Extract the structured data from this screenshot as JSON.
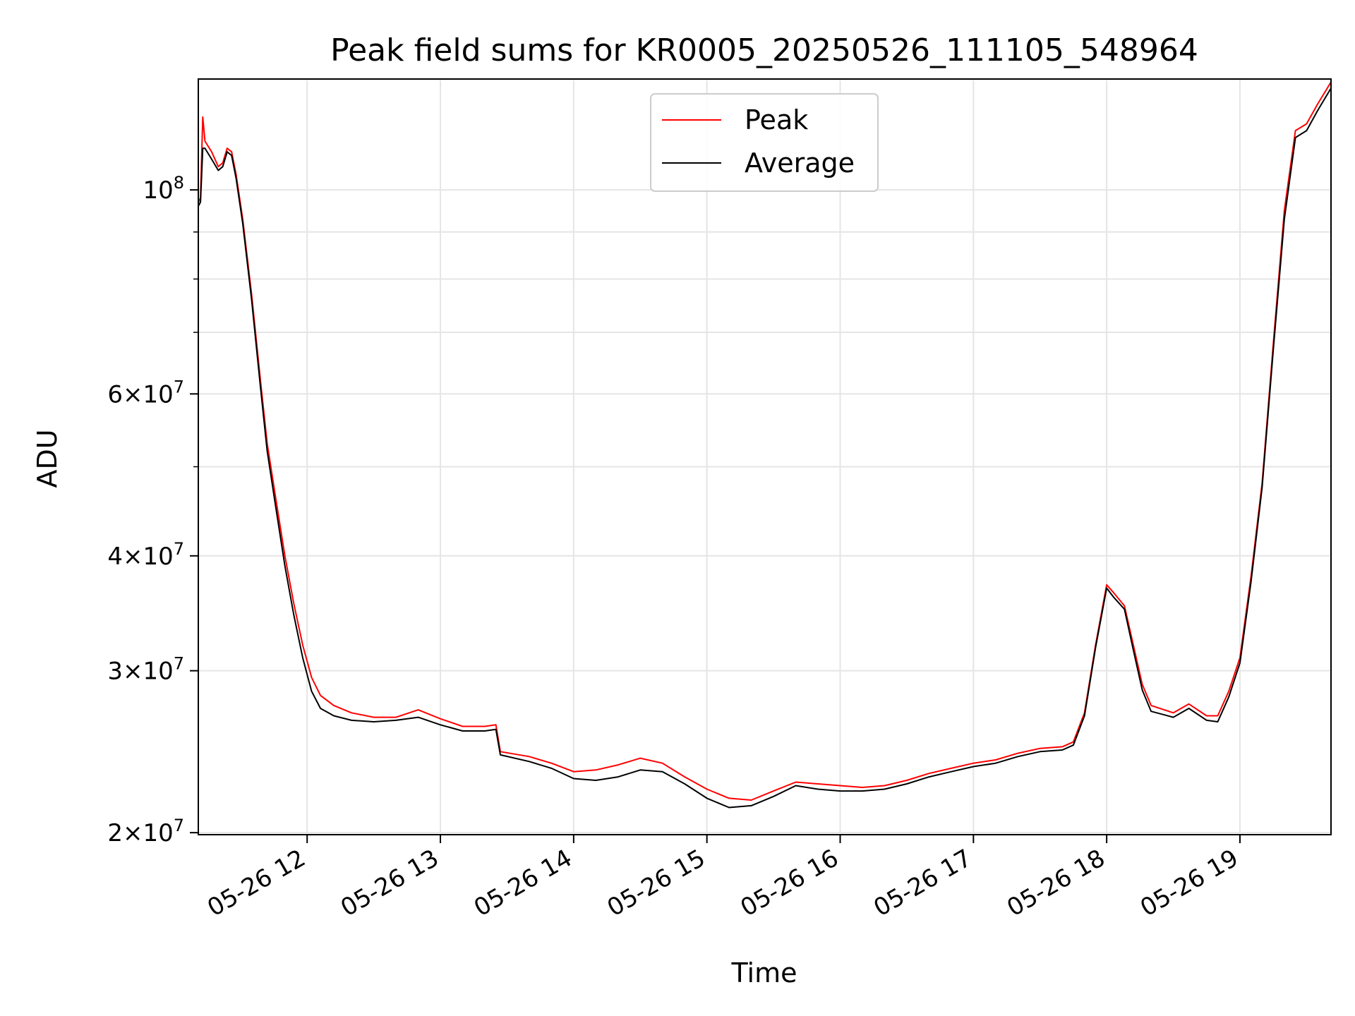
{
  "chart_data": {
    "type": "line",
    "title": "Peak field sums for KR0005_20250526_111105_548964",
    "xlabel": "Time",
    "ylabel": "ADU",
    "y_scale": "log",
    "ylim": [
      19900000,
      132000000
    ],
    "xlim": [
      "2025-05-26 11:11",
      "2025-05-26 19:41"
    ],
    "x_ticks": [
      "05-26 12",
      "05-26 13",
      "05-26 14",
      "05-26 15",
      "05-26 16",
      "05-26 17",
      "05-26 18",
      "05-26 19"
    ],
    "y_ticks": [
      {
        "value": 20000000,
        "mant": "2",
        "exp": "7"
      },
      {
        "value": 30000000,
        "mant": "3",
        "exp": "7"
      },
      {
        "value": 40000000,
        "mant": "4",
        "exp": "7"
      },
      {
        "value": 60000000,
        "mant": "6",
        "exp": "7"
      },
      {
        "value": 100000000,
        "mant": "",
        "exp": "8"
      }
    ],
    "grid": true,
    "legend_position": "top-center",
    "series": [
      {
        "name": "Peak",
        "color": "#ff0000",
        "points": [
          [
            "2025-05-26 11:11",
            97000000
          ],
          [
            "2025-05-26 11:12",
            98000000
          ],
          [
            "2025-05-26 11:13",
            120000000
          ],
          [
            "2025-05-26 11:14",
            113000000
          ],
          [
            "2025-05-26 11:17",
            110000000
          ],
          [
            "2025-05-26 11:20",
            106000000
          ],
          [
            "2025-05-26 11:22",
            107000000
          ],
          [
            "2025-05-26 11:24",
            111000000
          ],
          [
            "2025-05-26 11:26",
            110000000
          ],
          [
            "2025-05-26 11:28",
            104000000
          ],
          [
            "2025-05-26 11:31",
            93000000
          ],
          [
            "2025-05-26 11:35",
            77000000
          ],
          [
            "2025-05-26 11:39",
            62000000
          ],
          [
            "2025-05-26 11:42",
            53000000
          ],
          [
            "2025-05-26 11:46",
            46000000
          ],
          [
            "2025-05-26 11:50",
            40000000
          ],
          [
            "2025-05-26 11:54",
            35500000
          ],
          [
            "2025-05-26 11:58",
            32000000
          ],
          [
            "2025-05-26 12:02",
            29500000
          ],
          [
            "2025-05-26 12:06",
            28200000
          ],
          [
            "2025-05-26 12:12",
            27500000
          ],
          [
            "2025-05-26 12:20",
            27000000
          ],
          [
            "2025-05-26 12:30",
            26700000
          ],
          [
            "2025-05-26 12:40",
            26700000
          ],
          [
            "2025-05-26 12:50",
            27200000
          ],
          [
            "2025-05-26 13:00",
            26600000
          ],
          [
            "2025-05-26 13:10",
            26100000
          ],
          [
            "2025-05-26 13:20",
            26100000
          ],
          [
            "2025-05-26 13:25",
            26200000
          ],
          [
            "2025-05-26 13:27",
            24500000
          ],
          [
            "2025-05-26 13:40",
            24200000
          ],
          [
            "2025-05-26 13:50",
            23800000
          ],
          [
            "2025-05-26 14:00",
            23300000
          ],
          [
            "2025-05-26 14:10",
            23400000
          ],
          [
            "2025-05-26 14:20",
            23700000
          ],
          [
            "2025-05-26 14:30",
            24100000
          ],
          [
            "2025-05-26 14:40",
            23800000
          ],
          [
            "2025-05-26 14:50",
            23000000
          ],
          [
            "2025-05-26 15:00",
            22300000
          ],
          [
            "2025-05-26 15:10",
            21800000
          ],
          [
            "2025-05-26 15:20",
            21700000
          ],
          [
            "2025-05-26 15:30",
            22200000
          ],
          [
            "2025-05-26 15:40",
            22700000
          ],
          [
            "2025-05-26 15:50",
            22600000
          ],
          [
            "2025-05-26 16:00",
            22500000
          ],
          [
            "2025-05-26 16:10",
            22400000
          ],
          [
            "2025-05-26 16:20",
            22500000
          ],
          [
            "2025-05-26 16:30",
            22800000
          ],
          [
            "2025-05-26 16:40",
            23200000
          ],
          [
            "2025-05-26 16:50",
            23500000
          ],
          [
            "2025-05-26 17:00",
            23800000
          ],
          [
            "2025-05-26 17:10",
            24000000
          ],
          [
            "2025-05-26 17:20",
            24400000
          ],
          [
            "2025-05-26 17:30",
            24700000
          ],
          [
            "2025-05-26 17:40",
            24800000
          ],
          [
            "2025-05-26 17:45",
            25100000
          ],
          [
            "2025-05-26 17:50",
            27000000
          ],
          [
            "2025-05-26 17:55",
            32000000
          ],
          [
            "2025-05-26 18:00",
            37200000
          ],
          [
            "2025-05-26 18:03",
            36500000
          ],
          [
            "2025-05-26 18:08",
            35300000
          ],
          [
            "2025-05-26 18:12",
            32000000
          ],
          [
            "2025-05-26 18:16",
            29000000
          ],
          [
            "2025-05-26 18:20",
            27500000
          ],
          [
            "2025-05-26 18:30",
            27000000
          ],
          [
            "2025-05-26 18:37",
            27600000
          ],
          [
            "2025-05-26 18:45",
            26800000
          ],
          [
            "2025-05-26 18:50",
            26800000
          ],
          [
            "2025-05-26 18:55",
            28500000
          ],
          [
            "2025-05-26 19:00",
            31000000
          ],
          [
            "2025-05-26 19:05",
            38000000
          ],
          [
            "2025-05-26 19:10",
            48000000
          ],
          [
            "2025-05-26 19:15",
            68000000
          ],
          [
            "2025-05-26 19:20",
            95000000
          ],
          [
            "2025-05-26 19:25",
            116000000
          ],
          [
            "2025-05-26 19:30",
            118000000
          ],
          [
            "2025-05-26 19:35",
            124000000
          ],
          [
            "2025-05-26 19:41",
            131000000
          ]
        ]
      },
      {
        "name": "Average",
        "color": "#000000",
        "points": [
          [
            "2025-05-26 11:11",
            96000000
          ],
          [
            "2025-05-26 11:12",
            97000000
          ],
          [
            "2025-05-26 11:13",
            111000000
          ],
          [
            "2025-05-26 11:14",
            111000000
          ],
          [
            "2025-05-26 11:17",
            108000000
          ],
          [
            "2025-05-26 11:20",
            105000000
          ],
          [
            "2025-05-26 11:22",
            106000000
          ],
          [
            "2025-05-26 11:24",
            110000000
          ],
          [
            "2025-05-26 11:26",
            109000000
          ],
          [
            "2025-05-26 11:28",
            103000000
          ],
          [
            "2025-05-26 11:31",
            92000000
          ],
          [
            "2025-05-26 11:35",
            76000000
          ],
          [
            "2025-05-26 11:39",
            61000000
          ],
          [
            "2025-05-26 11:42",
            52000000
          ],
          [
            "2025-05-26 11:46",
            45000000
          ],
          [
            "2025-05-26 11:50",
            39000000
          ],
          [
            "2025-05-26 11:54",
            34500000
          ],
          [
            "2025-05-26 11:58",
            31000000
          ],
          [
            "2025-05-26 12:02",
            28500000
          ],
          [
            "2025-05-26 12:06",
            27300000
          ],
          [
            "2025-05-26 12:12",
            26800000
          ],
          [
            "2025-05-26 12:20",
            26500000
          ],
          [
            "2025-05-26 12:30",
            26400000
          ],
          [
            "2025-05-26 12:40",
            26500000
          ],
          [
            "2025-05-26 12:50",
            26700000
          ],
          [
            "2025-05-26 13:00",
            26200000
          ],
          [
            "2025-05-26 13:10",
            25800000
          ],
          [
            "2025-05-26 13:20",
            25800000
          ],
          [
            "2025-05-26 13:25",
            25900000
          ],
          [
            "2025-05-26 13:27",
            24300000
          ],
          [
            "2025-05-26 13:40",
            23900000
          ],
          [
            "2025-05-26 13:50",
            23500000
          ],
          [
            "2025-05-26 14:00",
            22900000
          ],
          [
            "2025-05-26 14:10",
            22800000
          ],
          [
            "2025-05-26 14:20",
            23000000
          ],
          [
            "2025-05-26 14:30",
            23400000
          ],
          [
            "2025-05-26 14:40",
            23300000
          ],
          [
            "2025-05-26 14:50",
            22600000
          ],
          [
            "2025-05-26 15:00",
            21800000
          ],
          [
            "2025-05-26 15:10",
            21300000
          ],
          [
            "2025-05-26 15:20",
            21400000
          ],
          [
            "2025-05-26 15:30",
            21900000
          ],
          [
            "2025-05-26 15:40",
            22500000
          ],
          [
            "2025-05-26 15:50",
            22300000
          ],
          [
            "2025-05-26 16:00",
            22200000
          ],
          [
            "2025-05-26 16:10",
            22200000
          ],
          [
            "2025-05-26 16:20",
            22300000
          ],
          [
            "2025-05-26 16:30",
            22600000
          ],
          [
            "2025-05-26 16:40",
            23000000
          ],
          [
            "2025-05-26 16:50",
            23300000
          ],
          [
            "2025-05-26 17:00",
            23600000
          ],
          [
            "2025-05-26 17:10",
            23800000
          ],
          [
            "2025-05-26 17:20",
            24200000
          ],
          [
            "2025-05-26 17:30",
            24500000
          ],
          [
            "2025-05-26 17:40",
            24600000
          ],
          [
            "2025-05-26 17:45",
            24900000
          ],
          [
            "2025-05-26 17:50",
            26800000
          ],
          [
            "2025-05-26 17:55",
            31800000
          ],
          [
            "2025-05-26 18:00",
            36900000
          ],
          [
            "2025-05-26 18:03",
            36100000
          ],
          [
            "2025-05-26 18:08",
            35000000
          ],
          [
            "2025-05-26 18:12",
            31600000
          ],
          [
            "2025-05-26 18:16",
            28600000
          ],
          [
            "2025-05-26 18:20",
            27100000
          ],
          [
            "2025-05-26 18:30",
            26700000
          ],
          [
            "2025-05-26 18:37",
            27300000
          ],
          [
            "2025-05-26 18:45",
            26500000
          ],
          [
            "2025-05-26 18:50",
            26400000
          ],
          [
            "2025-05-26 18:55",
            28100000
          ],
          [
            "2025-05-26 19:00",
            30600000
          ],
          [
            "2025-05-26 19:05",
            37500000
          ],
          [
            "2025-05-26 19:10",
            47500000
          ],
          [
            "2025-05-26 19:15",
            67000000
          ],
          [
            "2025-05-26 19:20",
            93000000
          ],
          [
            "2025-05-26 19:25",
            114000000
          ],
          [
            "2025-05-26 19:30",
            116000000
          ],
          [
            "2025-05-26 19:35",
            122000000
          ],
          [
            "2025-05-26 19:41",
            129000000
          ]
        ]
      }
    ]
  }
}
